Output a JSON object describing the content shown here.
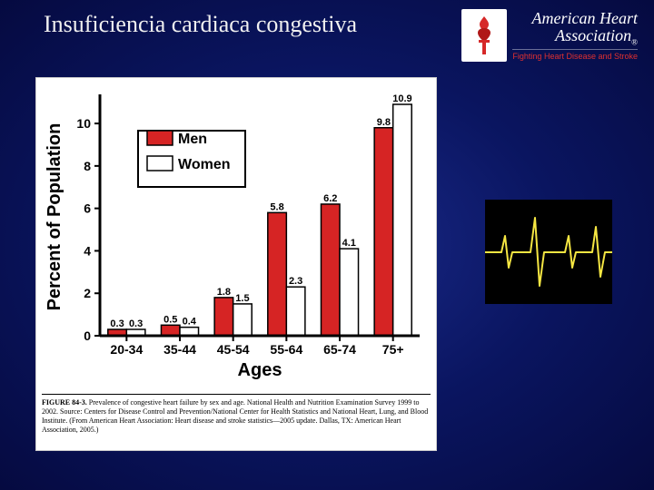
{
  "title": "Insuficiencia cardiaca congestiva",
  "logo": {
    "org_line1": "American Heart",
    "org_line2": "Association",
    "tagline": "Fighting Heart Disease and Stroke",
    "torch_color": "#d62828",
    "heart_color": "#b01818"
  },
  "chart": {
    "type": "bar",
    "y_label": "Percent of Population",
    "x_label": "Ages",
    "categories": [
      "20-34",
      "35-44",
      "45-54",
      "55-64",
      "65-74",
      "75+"
    ],
    "series": [
      {
        "name": "Men",
        "color": "#d62424",
        "values": [
          0.3,
          0.5,
          1.8,
          5.8,
          6.2,
          9.8
        ]
      },
      {
        "name": "Women",
        "color": "#ffffff",
        "values": [
          0.3,
          0.4,
          1.5,
          2.3,
          4.1,
          10.9
        ]
      }
    ],
    "ylim": [
      0,
      10
    ],
    "ytick_step": 2,
    "bar_border": "#000000",
    "axis_color": "#000000",
    "background": "#ffffff",
    "label_fontsize": 20,
    "tick_fontsize": 14,
    "barlabel_fontsize": 11,
    "legend_fontsize": 16,
    "bar_group_width": 0.7
  },
  "caption": "FIGURE 84-3. Prevalence of congestive heart failure by sex and age. National Health and Nutrition Examination Survey 1999 to 2002. Source: Centers for Disease Control and Prevention/National Center for Health Statistics and National Heart, Lung, and Blood Institute. (From American Heart Association: Heart disease and stroke statistics—2005 update. Dallas, TX: American Heart Association, 2005.)",
  "caption_lead": "FIGURE 84-3.",
  "ekg": {
    "bg": "#000000",
    "line_color": "#f5e642",
    "line_width": 2
  }
}
